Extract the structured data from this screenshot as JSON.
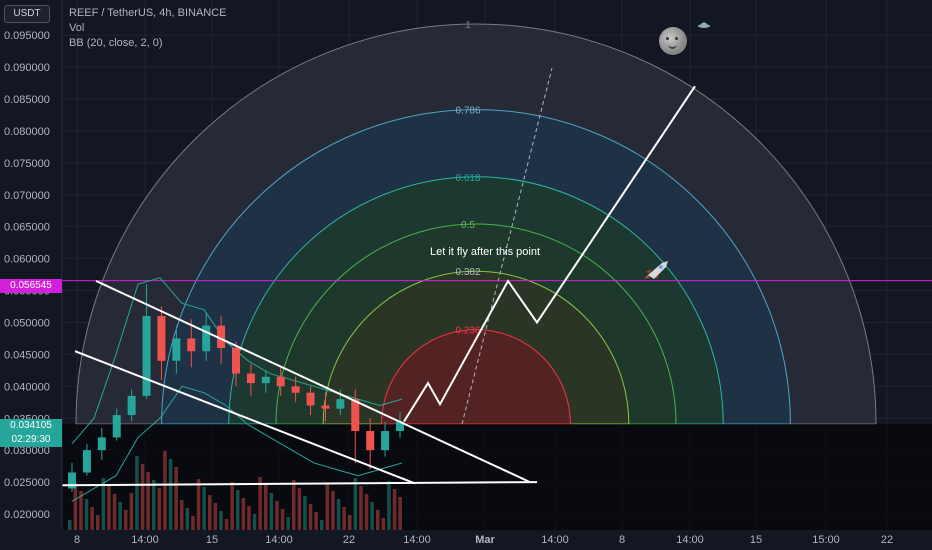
{
  "header": {
    "currency": "USDT",
    "symbol_line": "REEF / TetherUS, 4h, BINANCE",
    "vol_label": "Vol",
    "bb_label": "BB (20, close, 2, 0)"
  },
  "annotation_text": "Let it fly after this point",
  "price_tags": {
    "horizontal_line": "0.056545",
    "last_price": "0.034105",
    "countdown": "02:29:30"
  },
  "colors": {
    "background": "#131722",
    "up_candle": "#26a69a",
    "down_candle": "#ef5350",
    "horizontal_line": "#d21fdc",
    "last_price_tag": "#26a69a"
  },
  "icons": [
    "moon-face-icon",
    "ufo-icon",
    "rocket-icon"
  ],
  "chart_data": {
    "type": "candlestick",
    "title": "REEF / TetherUS, 4h, BINANCE",
    "ylim": [
      0.0175,
      0.1005
    ],
    "y_ticks": [
      "0.095000",
      "0.090000",
      "0.085000",
      "0.080000",
      "0.075000",
      "0.070000",
      "0.065000",
      "0.060000",
      "0.055000",
      "0.050000",
      "0.045000",
      "0.040000",
      "0.035000",
      "0.030000",
      "0.025000",
      "0.020000"
    ],
    "x_ticks": [
      "8",
      "14:00",
      "15",
      "14:00",
      "22",
      "14:00",
      "Mar",
      "14:00",
      "8",
      "14:00",
      "15",
      "15:00",
      "22"
    ],
    "horizontal_line_price": 0.056545,
    "last_price": 0.034105,
    "fib_circle_levels": [
      {
        "label": "1",
        "value": 1
      },
      {
        "label": "0.786",
        "value": 0.786
      },
      {
        "label": "0.618",
        "value": 0.618
      },
      {
        "label": "0.5",
        "value": 0.5
      },
      {
        "label": "0.382",
        "value": 0.382
      },
      {
        "label": "0.236",
        "value": 0.236
      }
    ],
    "projection_path_prices": [
      0.0345,
      0.0405,
      0.0372,
      0.0565,
      0.05,
      0.087
    ],
    "candles_approx": [
      {
        "o": 0.024,
        "c": 0.0265,
        "h": 0.028,
        "l": 0.0235
      },
      {
        "o": 0.0265,
        "c": 0.03,
        "h": 0.031,
        "l": 0.026
      },
      {
        "o": 0.03,
        "c": 0.032,
        "h": 0.0335,
        "l": 0.0285
      },
      {
        "o": 0.032,
        "c": 0.0355,
        "h": 0.0365,
        "l": 0.0315
      },
      {
        "o": 0.0355,
        "c": 0.0385,
        "h": 0.0395,
        "l": 0.0345
      },
      {
        "o": 0.0385,
        "c": 0.051,
        "h": 0.056,
        "l": 0.038
      },
      {
        "o": 0.051,
        "c": 0.044,
        "h": 0.0525,
        "l": 0.041
      },
      {
        "o": 0.044,
        "c": 0.0475,
        "h": 0.0495,
        "l": 0.042
      },
      {
        "o": 0.0475,
        "c": 0.0455,
        "h": 0.0505,
        "l": 0.043
      },
      {
        "o": 0.0455,
        "c": 0.0495,
        "h": 0.0515,
        "l": 0.044
      },
      {
        "o": 0.0495,
        "c": 0.046,
        "h": 0.051,
        "l": 0.0435
      },
      {
        "o": 0.046,
        "c": 0.042,
        "h": 0.047,
        "l": 0.04
      },
      {
        "o": 0.042,
        "c": 0.0405,
        "h": 0.0435,
        "l": 0.0385
      },
      {
        "o": 0.0405,
        "c": 0.0415,
        "h": 0.0425,
        "l": 0.039
      },
      {
        "o": 0.0415,
        "c": 0.04,
        "h": 0.043,
        "l": 0.0385
      },
      {
        "o": 0.04,
        "c": 0.039,
        "h": 0.0415,
        "l": 0.0375
      },
      {
        "o": 0.039,
        "c": 0.037,
        "h": 0.04,
        "l": 0.0355
      },
      {
        "o": 0.037,
        "c": 0.0365,
        "h": 0.039,
        "l": 0.0345
      },
      {
        "o": 0.0365,
        "c": 0.038,
        "h": 0.0395,
        "l": 0.0355
      },
      {
        "o": 0.038,
        "c": 0.033,
        "h": 0.0395,
        "l": 0.028
      },
      {
        "o": 0.033,
        "c": 0.03,
        "h": 0.035,
        "l": 0.027
      },
      {
        "o": 0.03,
        "c": 0.033,
        "h": 0.0345,
        "l": 0.029
      },
      {
        "o": 0.033,
        "c": 0.0345,
        "h": 0.036,
        "l": 0.032
      }
    ]
  }
}
